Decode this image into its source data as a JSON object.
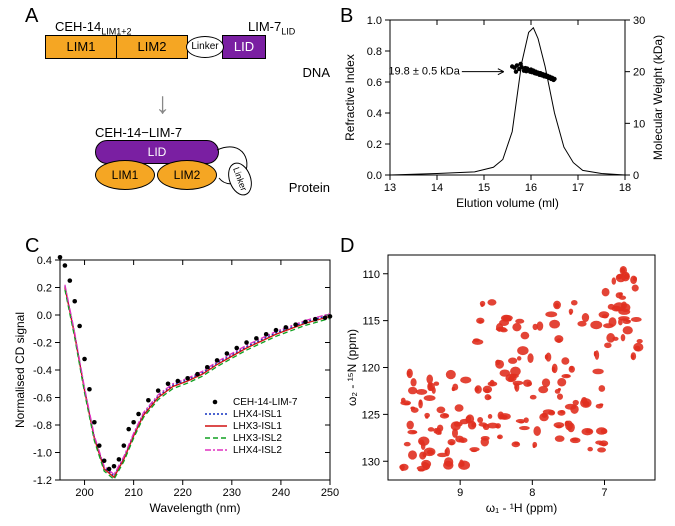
{
  "panelA": {
    "label": "A",
    "top_label_left": "CEH-14",
    "top_label_left_sub": "LIM1+2",
    "top_label_right": "LIM-7",
    "top_label_right_sub": "LID",
    "lim1": "LIM1",
    "lim2": "LIM2",
    "linker": "Linker",
    "lid": "LID",
    "side_dna": "DNA",
    "side_protein": "Protein",
    "complex_label": "CEH-14−LIM-7",
    "colors": {
      "orange": "#f5a623",
      "purple": "#7a1fa2"
    }
  },
  "panelB": {
    "label": "B",
    "xlabel": "Elution volume (ml)",
    "ylabel_left": "Refractive Index",
    "ylabel_right": "Molecular Weight (kDa)",
    "xlim": [
      13,
      18
    ],
    "xtick_step": 1,
    "ylim_left": [
      0,
      1.0
    ],
    "ytick_left_step": 0.2,
    "ylim_right": [
      0,
      30
    ],
    "ytick_right_step": 10,
    "annotation": "19.8 ± 0.5 kDa",
    "curve": [
      [
        13.0,
        0.0
      ],
      [
        14.0,
        0.01
      ],
      [
        14.8,
        0.02
      ],
      [
        15.2,
        0.05
      ],
      [
        15.4,
        0.1
      ],
      [
        15.6,
        0.28
      ],
      [
        15.8,
        0.72
      ],
      [
        15.95,
        0.92
      ],
      [
        16.05,
        0.95
      ],
      [
        16.15,
        0.88
      ],
      [
        16.3,
        0.7
      ],
      [
        16.5,
        0.4
      ],
      [
        16.7,
        0.18
      ],
      [
        16.9,
        0.08
      ],
      [
        17.1,
        0.03
      ],
      [
        17.5,
        0.01
      ],
      [
        18.0,
        0.0
      ]
    ],
    "mw_points": [
      [
        15.6,
        21.0
      ],
      [
        15.65,
        20.8
      ],
      [
        15.68,
        20.0
      ],
      [
        15.7,
        21.2
      ],
      [
        15.75,
        20.5
      ],
      [
        15.78,
        21.5
      ],
      [
        15.8,
        20.9
      ],
      [
        15.85,
        20.2
      ],
      [
        15.88,
        20.7
      ],
      [
        15.9,
        20.1
      ],
      [
        15.92,
        20.6
      ],
      [
        15.95,
        20.3
      ],
      [
        15.98,
        20.0
      ],
      [
        16.0,
        20.4
      ],
      [
        16.02,
        19.9
      ],
      [
        16.05,
        20.2
      ],
      [
        16.08,
        19.7
      ],
      [
        16.1,
        20.0
      ],
      [
        16.12,
        19.6
      ],
      [
        16.15,
        19.8
      ],
      [
        16.18,
        19.4
      ],
      [
        16.2,
        19.7
      ],
      [
        16.23,
        19.3
      ],
      [
        16.25,
        19.5
      ],
      [
        16.28,
        19.1
      ],
      [
        16.3,
        19.4
      ],
      [
        16.33,
        19.0
      ],
      [
        16.35,
        19.2
      ],
      [
        16.38,
        18.8
      ],
      [
        16.4,
        19.0
      ],
      [
        16.43,
        18.6
      ],
      [
        16.45,
        18.8
      ],
      [
        16.48,
        18.4
      ],
      [
        16.5,
        18.6
      ]
    ],
    "arrow_at": [
      15.55,
      20.0
    ]
  },
  "panelC": {
    "label": "C",
    "xlabel": "Wavelength (nm)",
    "ylabel": "Normalised CD signal",
    "xlim": [
      195,
      250
    ],
    "xticks": [
      200,
      210,
      220,
      230,
      240,
      250
    ],
    "ylim": [
      -1.2,
      0.4
    ],
    "yticks": [
      -1.2,
      -1.0,
      -0.8,
      -0.6,
      -0.4,
      -0.2,
      0.0,
      0.2,
      0.4
    ],
    "legend": [
      {
        "name": "CEH-14-LIM-7",
        "color": "#000000",
        "type": "dots"
      },
      {
        "name": "LHX4-ISL1",
        "color": "#1030c0",
        "type": "dotted"
      },
      {
        "name": "LHX3-ISL1",
        "color": "#d01010",
        "type": "solid"
      },
      {
        "name": "LHX3-ISL2",
        "color": "#10a020",
        "type": "dashed"
      },
      {
        "name": "LHX4-ISL2",
        "color": "#e030c0",
        "type": "dashdot"
      }
    ],
    "dots": [
      [
        195,
        0.42
      ],
      [
        196,
        0.36
      ],
      [
        197,
        0.25
      ],
      [
        198,
        0.1
      ],
      [
        199,
        -0.08
      ],
      [
        200,
        -0.32
      ],
      [
        201,
        -0.54
      ],
      [
        202,
        -0.78
      ],
      [
        203,
        -0.95
      ],
      [
        204,
        -1.06
      ],
      [
        205,
        -1.12
      ],
      [
        206,
        -1.1
      ],
      [
        207,
        -1.05
      ],
      [
        208,
        -0.95
      ],
      [
        209,
        -0.83
      ],
      [
        210,
        -0.78
      ],
      [
        211,
        -0.72
      ],
      [
        213,
        -0.62
      ],
      [
        215,
        -0.55
      ],
      [
        217,
        -0.5
      ],
      [
        219,
        -0.48
      ],
      [
        221,
        -0.46
      ],
      [
        223,
        -0.43
      ],
      [
        225,
        -0.38
      ],
      [
        227,
        -0.33
      ],
      [
        229,
        -0.28
      ],
      [
        231,
        -0.24
      ],
      [
        233,
        -0.2
      ],
      [
        235,
        -0.17
      ],
      [
        237,
        -0.14
      ],
      [
        239,
        -0.11
      ],
      [
        241,
        -0.09
      ],
      [
        243,
        -0.07
      ],
      [
        245,
        -0.05
      ],
      [
        247,
        -0.03
      ],
      [
        249,
        -0.02
      ],
      [
        250,
        -0.01
      ]
    ],
    "line_base": [
      [
        196,
        0.2
      ],
      [
        198,
        -0.15
      ],
      [
        200,
        -0.55
      ],
      [
        202,
        -0.9
      ],
      [
        204,
        -1.12
      ],
      [
        206,
        -1.18
      ],
      [
        208,
        -1.05
      ],
      [
        210,
        -0.88
      ],
      [
        212,
        -0.73
      ],
      [
        215,
        -0.6
      ],
      [
        218,
        -0.52
      ],
      [
        221,
        -0.48
      ],
      [
        224,
        -0.43
      ],
      [
        227,
        -0.36
      ],
      [
        230,
        -0.3
      ],
      [
        233,
        -0.24
      ],
      [
        236,
        -0.19
      ],
      [
        239,
        -0.14
      ],
      [
        242,
        -0.1
      ],
      [
        245,
        -0.06
      ],
      [
        248,
        -0.03
      ],
      [
        250,
        -0.01
      ]
    ]
  },
  "panelD": {
    "label": "D",
    "xlabel": "ω₁ - ¹H (ppm)",
    "ylabel": "ω₂ - ¹⁵N (ppm)",
    "xlim": [
      10,
      6.3
    ],
    "xticks": [
      9,
      8,
      7
    ],
    "ylim": [
      132,
      108
    ],
    "yticks": [
      110,
      115,
      120,
      125,
      130
    ],
    "peak_color": "#e03020",
    "n_peaks": 180
  }
}
